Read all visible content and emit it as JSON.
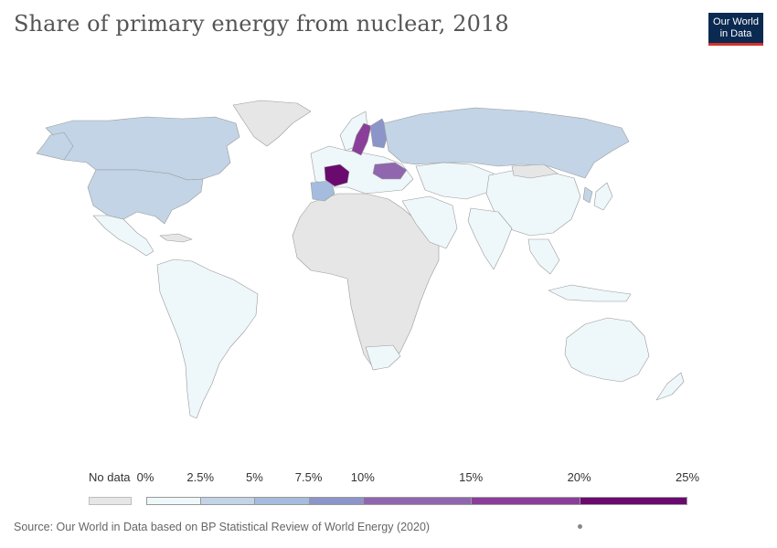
{
  "header": {
    "title": "Share of primary energy from nuclear, 2018",
    "logo_line1": "Our World",
    "logo_line2": "in Data"
  },
  "legend": {
    "no_data_label": "No data",
    "bins": [
      {
        "from": 0,
        "to": 2.5,
        "color": "#eef7fa"
      },
      {
        "from": 2.5,
        "to": 5,
        "color": "#c2d4e6"
      },
      {
        "from": 5,
        "to": 7.5,
        "color": "#a5bcde"
      },
      {
        "from": 7.5,
        "to": 10,
        "color": "#8c95c9"
      },
      {
        "from": 10,
        "to": 15,
        "color": "#9066ae"
      },
      {
        "from": 15,
        "to": 20,
        "color": "#8a3e9a"
      },
      {
        "from": 20,
        "to": 25,
        "color": "#6b0a6e"
      }
    ],
    "ticks": [
      "0%",
      "2.5%",
      "5%",
      "7.5%",
      "10%",
      "15%",
      "20%",
      "25%"
    ],
    "no_data_color": "#e6e6e6"
  },
  "map": {
    "regions": [
      {
        "name": "Greenland",
        "bin": "no-data",
        "color": "#e6e6e6"
      },
      {
        "name": "Canada",
        "bin": "2.5-5%",
        "color": "#c2d4e6"
      },
      {
        "name": "United States",
        "bin": "2.5-5%",
        "color": "#c2d4e6"
      },
      {
        "name": "Mexico",
        "bin": "0-2.5%",
        "color": "#eef7fa"
      },
      {
        "name": "South America",
        "bin": "0-2.5%",
        "color": "#eef7fa"
      },
      {
        "name": "Africa",
        "bin": "no-data",
        "color": "#e6e6e6"
      },
      {
        "name": "South Africa",
        "bin": "0-2.5%",
        "color": "#eef7fa"
      },
      {
        "name": "Russia",
        "bin": "2.5-5%",
        "color": "#c2d4e6"
      },
      {
        "name": "Sweden",
        "bin": "15-20%",
        "color": "#8a3e9a"
      },
      {
        "name": "Finland",
        "bin": "7.5-10%",
        "color": "#8c95c9"
      },
      {
        "name": "France",
        "bin": "20-25%",
        "color": "#6b0a6e"
      },
      {
        "name": "Ukraine",
        "bin": "10-15%",
        "color": "#9066ae"
      },
      {
        "name": "Spain",
        "bin": "5-7.5%",
        "color": "#a5bcde"
      },
      {
        "name": "China",
        "bin": "0-2.5%",
        "color": "#eef7fa"
      },
      {
        "name": "India",
        "bin": "0-2.5%",
        "color": "#eef7fa"
      },
      {
        "name": "Australia",
        "bin": "0-2.5%",
        "color": "#eef7fa"
      }
    ]
  },
  "footer": {
    "source": "Source: Our World in Data based on BP Statistical Review of World Energy (2020)"
  }
}
